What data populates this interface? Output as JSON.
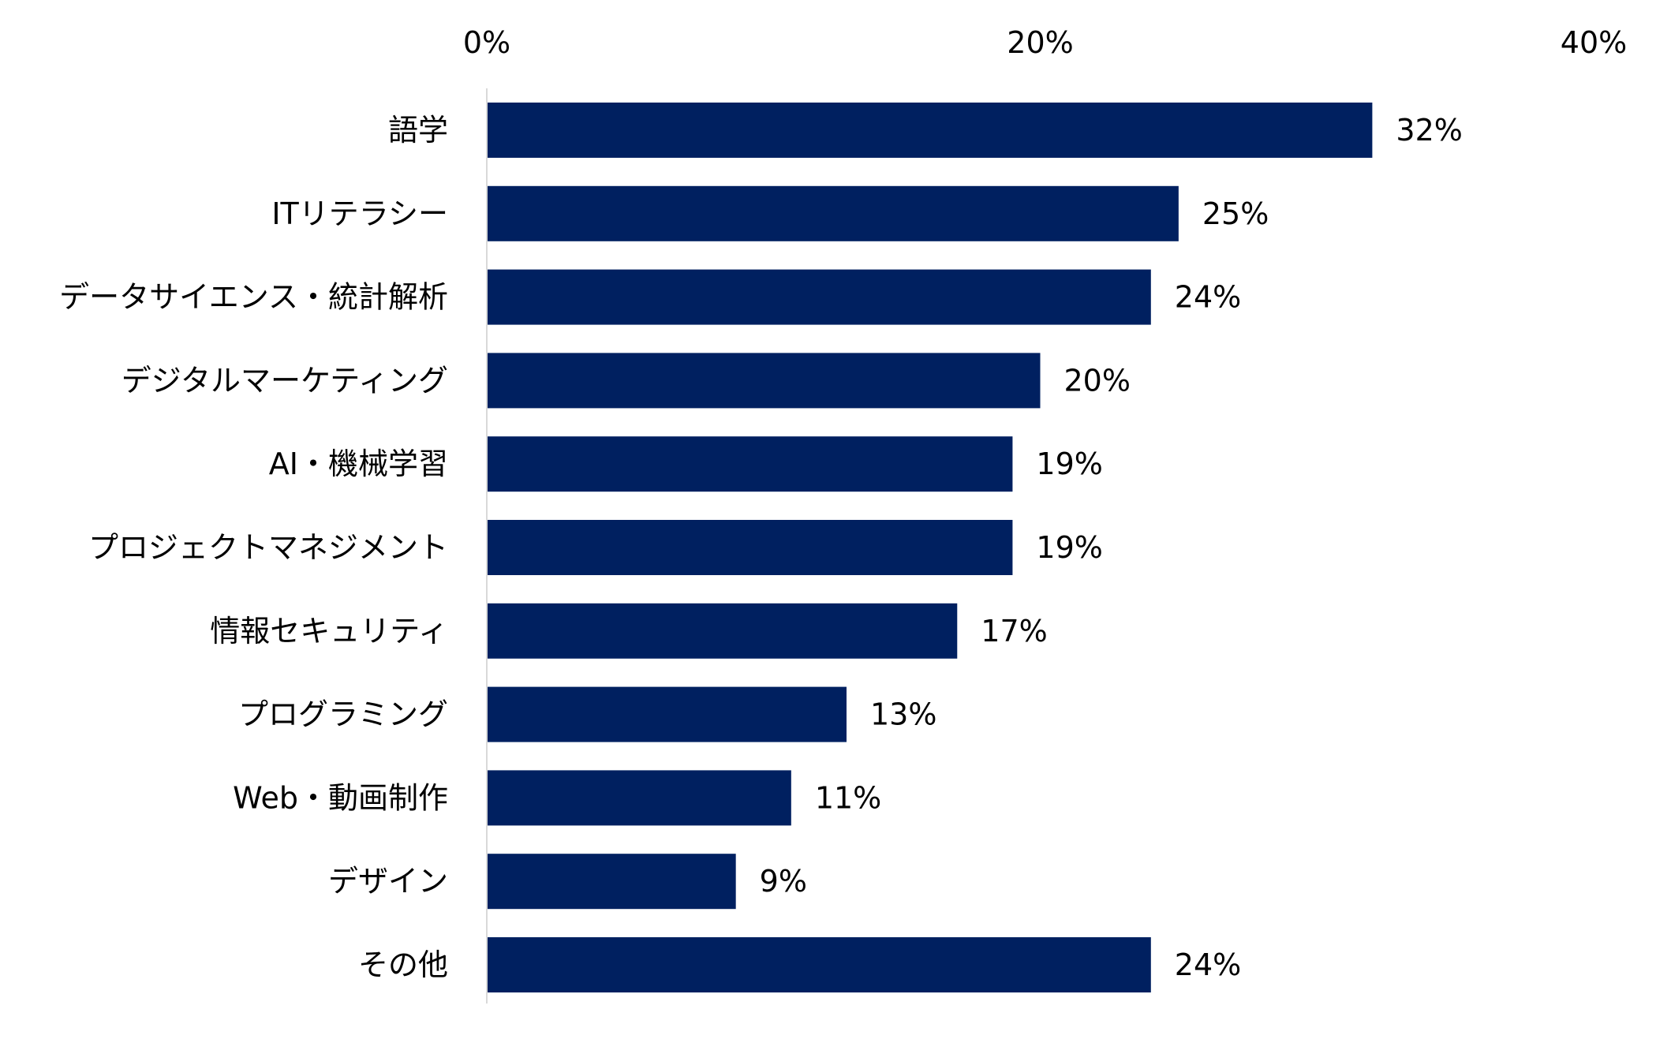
{
  "chart_data": {
    "type": "bar",
    "orientation": "horizontal",
    "title": "",
    "xlabel": "",
    "ylabel": "",
    "categories": [
      "語学",
      "ITリテラシー",
      "データサイエンス・統計解析",
      "デジタルマーケティング",
      "AI・機械学習",
      "プロジェクトマネジメント",
      "情報セキュリティ",
      "プログラミング",
      "Web・動画制作",
      "デザイン",
      "その他"
    ],
    "values": [
      32,
      25,
      24,
      20,
      19,
      19,
      17,
      13,
      11,
      9,
      24
    ],
    "value_labels": [
      "32%",
      "25%",
      "24%",
      "20%",
      "19%",
      "19%",
      "17%",
      "13%",
      "11%",
      "9%",
      "24%"
    ],
    "xlim": [
      0,
      40
    ],
    "x_ticks": [
      0,
      20,
      40
    ],
    "x_tick_labels": [
      "0%",
      "20%",
      "40%"
    ],
    "x_axis_position": "top",
    "grid": false,
    "legend": "none",
    "bar_color": "#002060",
    "axis_line_color": "#d9d9d9"
  }
}
